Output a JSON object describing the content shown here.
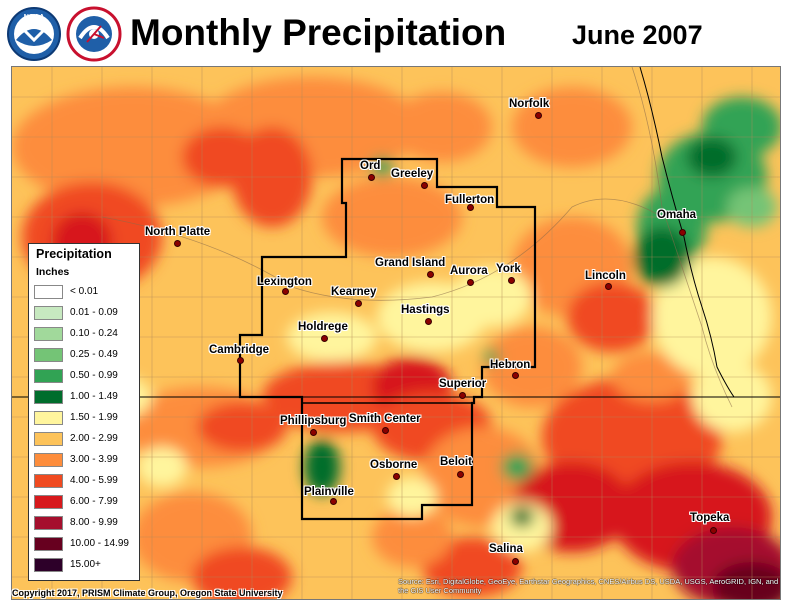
{
  "header": {
    "title": "Monthly Precipitation",
    "date": "June 2007",
    "logos": [
      {
        "name": "noaa-logo",
        "text": "NOAA",
        "color": "#1f5fa8"
      },
      {
        "name": "nws-logo",
        "text": "NATIONAL WEATHER SERVICE",
        "color": "#c8102e"
      }
    ]
  },
  "legend": {
    "title": "Precipitation",
    "units": "Inches",
    "entries": [
      {
        "label": "< 0.01",
        "color": "#ffffff"
      },
      {
        "label": "0.01 - 0.09",
        "color": "#c7e9c0"
      },
      {
        "label": "0.10 - 0.24",
        "color": "#a1d99b"
      },
      {
        "label": "0.25 - 0.49",
        "color": "#74c476"
      },
      {
        "label": "0.50 - 0.99",
        "color": "#31a354"
      },
      {
        "label": "1.00 - 1.49",
        "color": "#006d2c"
      },
      {
        "label": "1.50 - 1.99",
        "color": "#fff59d"
      },
      {
        "label": "2.00 - 2.99",
        "color": "#fdc35a"
      },
      {
        "label": "3.00 - 3.99",
        "color": "#fd8d3c"
      },
      {
        "label": "4.00 - 5.99",
        "color": "#f04a20"
      },
      {
        "label": "6.00 - 7.99",
        "color": "#d7191c"
      },
      {
        "label": "8.00 - 9.99",
        "color": "#a50f2d"
      },
      {
        "label": "10.00 - 14.99",
        "color": "#67001f"
      },
      {
        "label": "15.00+",
        "color": "#2d0029"
      }
    ]
  },
  "cities": [
    {
      "name": "Norfolk"
    },
    {
      "name": "Ord"
    },
    {
      "name": "Greeley"
    },
    {
      "name": "Fullerton"
    },
    {
      "name": "Omaha"
    },
    {
      "name": "North Platte"
    },
    {
      "name": "Grand Island"
    },
    {
      "name": "Aurora"
    },
    {
      "name": "York"
    },
    {
      "name": "Lincoln"
    },
    {
      "name": "Lexington"
    },
    {
      "name": "Kearney"
    },
    {
      "name": "Hastings"
    },
    {
      "name": "Holdrege"
    },
    {
      "name": "Cambridge"
    },
    {
      "name": "Hebron"
    },
    {
      "name": "Superior"
    },
    {
      "name": "Phillipsburg"
    },
    {
      "name": "Smith Center"
    },
    {
      "name": "Beloit"
    },
    {
      "name": "Osborne"
    },
    {
      "name": "Plainville"
    },
    {
      "name": "Topeka"
    },
    {
      "name": "Salina"
    }
  ],
  "footer": {
    "copyright": "Copyright 2017, PRISM Climate Group, Oregon State University",
    "credits": "Source: Esri, DigitalGlobe, GeoEye, Earthstar Geographics, CNES/Airbus DS, USDA, USGS, AeroGRID, IGN, and the GIS User Community"
  },
  "colors": {
    "map_base": "#fdc35a",
    "boundary": "#000000",
    "county_line": "#b08a5a"
  }
}
